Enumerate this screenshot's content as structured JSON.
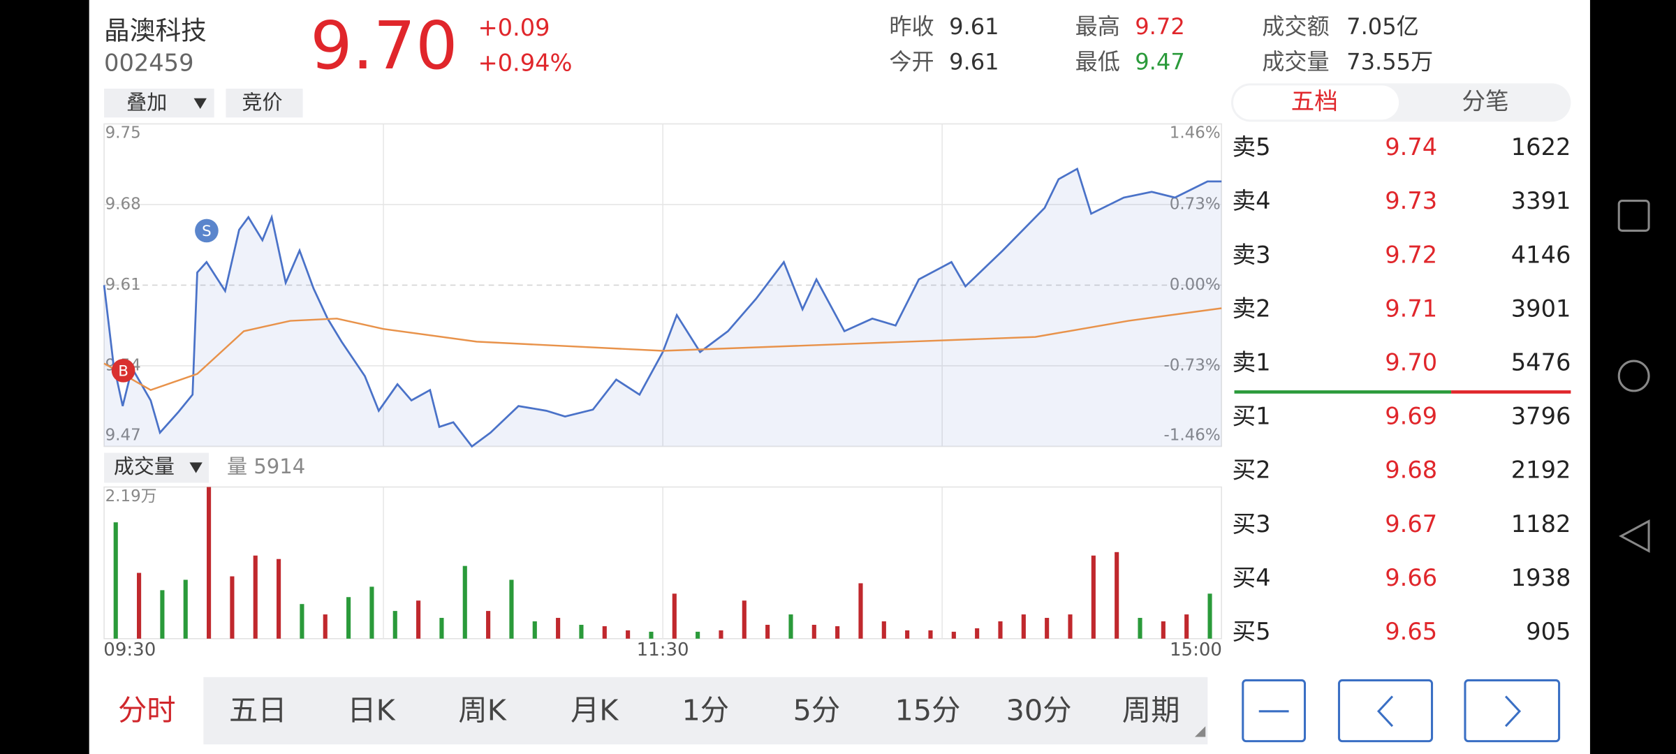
{
  "header": {
    "name": "晶澳科技",
    "code": "002459",
    "price": "9.70",
    "change": "+0.09",
    "change_pct": "+0.94%",
    "stats": [
      {
        "label": "昨收",
        "value": "9.61"
      },
      {
        "label": "今开",
        "value": "9.61"
      },
      {
        "label": "最高",
        "value": "9.72"
      },
      {
        "label": "最低",
        "value": "9.47"
      },
      {
        "label": "成交额",
        "value": "7.05亿"
      },
      {
        "label": "成交量",
        "value": "73.55万"
      }
    ]
  },
  "toolbar": {
    "overlay": "叠加",
    "auction": "竞价",
    "volume_menu": "成交量",
    "volume_now": "量 5914",
    "trade_marks": [
      "B",
      "S"
    ]
  },
  "order_book": {
    "tabs": [
      "五档",
      "分笔"
    ],
    "rows": [
      [
        "卖5",
        "9.74",
        "1622"
      ],
      [
        "卖4",
        "9.73",
        "3391"
      ],
      [
        "卖3",
        "9.72",
        "4146"
      ],
      [
        "卖2",
        "9.71",
        "3901"
      ],
      [
        "卖1",
        "9.70",
        "5476"
      ],
      [
        "买1",
        "9.69",
        "3796"
      ],
      [
        "买2",
        "9.68",
        "2192"
      ],
      [
        "买3",
        "9.67",
        "1182"
      ],
      [
        "买4",
        "9.66",
        "1938"
      ],
      [
        "买5",
        "9.65",
        "905"
      ]
    ]
  },
  "period_tabs": [
    "分时",
    "五日",
    "日K",
    "周K",
    "月K",
    "1分",
    "5分",
    "15分",
    "30分",
    "周期"
  ],
  "chart_data": [
    {
      "type": "line",
      "xlim": [
        0,
        240
      ],
      "xticks": [
        {
          "value": 0,
          "label": "09:30"
        },
        {
          "value": 120,
          "label": "11:30"
        },
        {
          "value": 240,
          "label": "15:00"
        }
      ],
      "xgrid_lines": [
        60,
        120,
        180
      ],
      "ylim": [
        9.47,
        9.75
      ],
      "yticks": [
        9.47,
        9.54,
        9.61,
        9.68,
        9.75
      ],
      "y2lim": [
        -1.46,
        1.46
      ],
      "y2ticks": [
        {
          "value": -1.46,
          "label": "-1.46%"
        },
        {
          "value": -0.73,
          "label": "-0.73%"
        },
        {
          "value": 0,
          "label": "0.00%"
        },
        {
          "value": 0.73,
          "label": "0.73%"
        },
        {
          "value": 1.46,
          "label": "1.46%"
        }
      ],
      "series": [
        {
          "color": "#4a72c8",
          "x": [
            0,
            2,
            4,
            6,
            10,
            12,
            16,
            19,
            20,
            22,
            26,
            29,
            31,
            34,
            36,
            39,
            42,
            45,
            48,
            51,
            56,
            59,
            63,
            66,
            70,
            72,
            75,
            79,
            83,
            89,
            95,
            99,
            105,
            110,
            115,
            120,
            123,
            128,
            134,
            140,
            146,
            150,
            153,
            159,
            165,
            170,
            175,
            182,
            185,
            193,
            202,
            205,
            209,
            212,
            219,
            225,
            230,
            237,
            240
          ],
          "values": [
            9.61,
            9.542,
            9.505,
            9.538,
            9.51,
            9.482,
            9.5,
            9.515,
            9.621,
            9.63,
            9.605,
            9.658,
            9.669,
            9.649,
            9.669,
            9.612,
            9.64,
            9.607,
            9.581,
            9.561,
            9.531,
            9.501,
            9.524,
            9.51,
            9.519,
            9.487,
            9.491,
            9.47,
            9.482,
            9.505,
            9.501,
            9.496,
            9.502,
            9.528,
            9.515,
            9.552,
            9.584,
            9.552,
            9.57,
            9.598,
            9.63,
            9.589,
            9.615,
            9.57,
            9.581,
            9.575,
            9.615,
            9.63,
            9.609,
            9.64,
            9.677,
            9.702,
            9.711,
            9.672,
            9.686,
            9.691,
            9.686,
            9.7,
            9.7
          ]
        },
        {
          "color": "#e8924a",
          "x": [
            0,
            10,
            20,
            30,
            40,
            50,
            60,
            80,
            120,
            160,
            200,
            220,
            240
          ],
          "values": [
            9.542,
            9.519,
            9.533,
            9.57,
            9.579,
            9.581,
            9.572,
            9.561,
            9.553,
            9.559,
            9.565,
            9.579,
            9.59
          ]
        }
      ]
    },
    {
      "type": "bar",
      "xlim": [
        0,
        240
      ],
      "ylim": [
        0,
        21900
      ],
      "yticks": [
        {
          "value": 21900,
          "label": "2.19万"
        }
      ],
      "x": [
        2.5,
        7.5,
        12.5,
        17.5,
        22.5,
        27.5,
        32.5,
        37.5,
        42.5,
        47.5,
        52.5,
        57.5,
        62.5,
        67.5,
        72.5,
        77.5,
        82.5,
        87.5,
        92.5,
        97.5,
        102.5,
        107.5,
        112.5,
        117.5,
        122.5,
        127.5,
        132.5,
        137.5,
        142.5,
        147.5,
        152.5,
        157.5,
        162.5,
        167.5,
        172.5,
        177.5,
        182.5,
        187.5,
        192.5,
        197.5,
        202.5,
        207.5,
        212.5,
        217.5,
        222.5,
        227.5,
        232.5,
        237.5
      ],
      "values": [
        16800,
        9500,
        7000,
        8500,
        21900,
        9000,
        12000,
        11500,
        5000,
        3500,
        6000,
        7500,
        4000,
        5500,
        3000,
        10500,
        4000,
        8500,
        2500,
        3000,
        2000,
        1800,
        1200,
        1000,
        6500,
        1000,
        1200,
        5500,
        2000,
        3500,
        2000,
        1800,
        8000,
        2500,
        1200,
        1200,
        1000,
        1500,
        2500,
        3500,
        3000,
        3500,
        12000,
        12500,
        3000,
        2500,
        3500,
        6500
      ],
      "colors": [
        "#2a9a3a",
        "#c0282d",
        "#2a9a3a",
        "#2a9a3a",
        "#c0282d",
        "#c0282d",
        "#c0282d",
        "#c0282d",
        "#2a9a3a",
        "#c0282d",
        "#2a9a3a",
        "#2a9a3a",
        "#2a9a3a",
        "#c0282d",
        "#2a9a3a",
        "#2a9a3a",
        "#c0282d",
        "#2a9a3a",
        "#2a9a3a",
        "#c0282d",
        "#2a9a3a",
        "#c0282d",
        "#c0282d",
        "#2a9a3a",
        "#c0282d",
        "#2a9a3a",
        "#c0282d",
        "#c0282d",
        "#c0282d",
        "#2a9a3a",
        "#c0282d",
        "#c0282d",
        "#c0282d",
        "#c0282d",
        "#c0282d",
        "#c0282d",
        "#c0282d",
        "#c0282d",
        "#c0282d",
        "#c0282d",
        "#c0282d",
        "#c0282d",
        "#c0282d",
        "#c0282d",
        "#2a9a3a",
        "#c0282d",
        "#c0282d",
        "#2a9a3a"
      ]
    }
  ]
}
